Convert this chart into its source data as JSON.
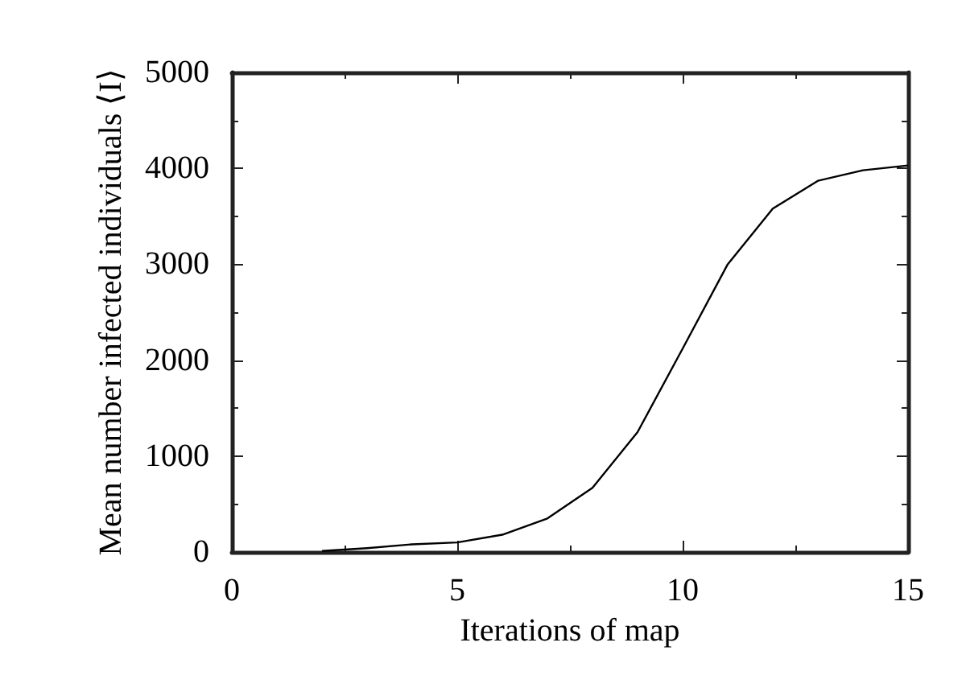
{
  "chart_data": {
    "type": "line",
    "xlabel": "Iterations of map",
    "ylabel": "Mean number infected individuals ⟨I⟩",
    "x": [
      2,
      3,
      4,
      5,
      6,
      7,
      8,
      9,
      10,
      11,
      12,
      13,
      14,
      15
    ],
    "series": [
      {
        "color": "#000000",
        "values": [
          10,
          40,
          80,
          100,
          180,
          350,
          670,
          1250,
          2120,
          3000,
          3580,
          3870,
          3980,
          4030
        ]
      }
    ],
    "xlim": [
      0,
      15
    ],
    "xticks": [
      0,
      5,
      10,
      15
    ],
    "ylim": [
      0,
      5000
    ],
    "yticks": [
      0,
      1000,
      2000,
      3000,
      4000,
      5000
    ],
    "grid": false,
    "marker": "none",
    "line_style": "solid"
  }
}
